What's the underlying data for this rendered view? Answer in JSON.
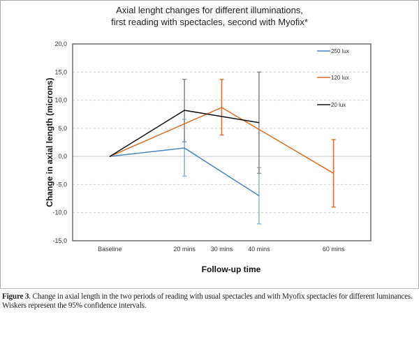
{
  "chart_data": {
    "type": "line",
    "title_lines": [
      "Axial lenght changes for different illuminations,",
      "first reading with spectacles, second with Myofix*"
    ],
    "xlabel": "Follow-up time",
    "ylabel": "Change in axial length (microns)",
    "x_minutes": [
      0,
      20,
      30,
      40,
      60
    ],
    "x_tick_labels": [
      "Baseline",
      "20 mins",
      "30 mins",
      "40 mins",
      "60 mins"
    ],
    "x_range_minutes": [
      -10,
      70
    ],
    "ylim": [
      -15,
      20
    ],
    "y_ticks": [
      20,
      15,
      10,
      5,
      0,
      -5,
      -10,
      -15
    ],
    "y_tick_labels": [
      "20,0",
      "15,0",
      "10,0",
      "5,0",
      "0,0",
      "-5,0",
      "-10,0",
      "-15,0"
    ],
    "grid": "horizontal dashed",
    "legend_position": "top-right",
    "series": [
      {
        "name": "250 lux",
        "color": "#4a86c5",
        "errcolor": "#8fb4dc",
        "points": [
          {
            "x": 0,
            "y": 0
          },
          {
            "x": 20,
            "y": 1.5,
            "ci": [
              -3.5,
              6.6
            ]
          },
          {
            "x": 40,
            "y": -7.0,
            "ci": [
              -12.0,
              -2.0
            ]
          }
        ]
      },
      {
        "name": "120 lux",
        "color": "#e36c1f",
        "errcolor": "#e36c1f",
        "points": [
          {
            "x": 0,
            "y": 0
          },
          {
            "x": 30,
            "y": 8.7,
            "ci": [
              3.8,
              13.7
            ]
          },
          {
            "x": 60,
            "y": -3.0,
            "ci": [
              -9.0,
              3.0
            ]
          }
        ]
      },
      {
        "name": "20 lux",
        "color": "#111111",
        "errcolor": "#8c8c8c",
        "points": [
          {
            "x": 0,
            "y": 0
          },
          {
            "x": 20,
            "y": 8.2,
            "ci": [
              2.6,
              13.7
            ]
          },
          {
            "x": 40,
            "y": 6.0,
            "ci": [
              -3.0,
              15.0
            ]
          }
        ]
      }
    ]
  },
  "caption": {
    "label": "Figure 3",
    "text": ". Change in axial length in the two periods of reading with usual spectacles and with Myofix spectacles for different luminances. Wiskers represent the 95% confidence intervals."
  }
}
